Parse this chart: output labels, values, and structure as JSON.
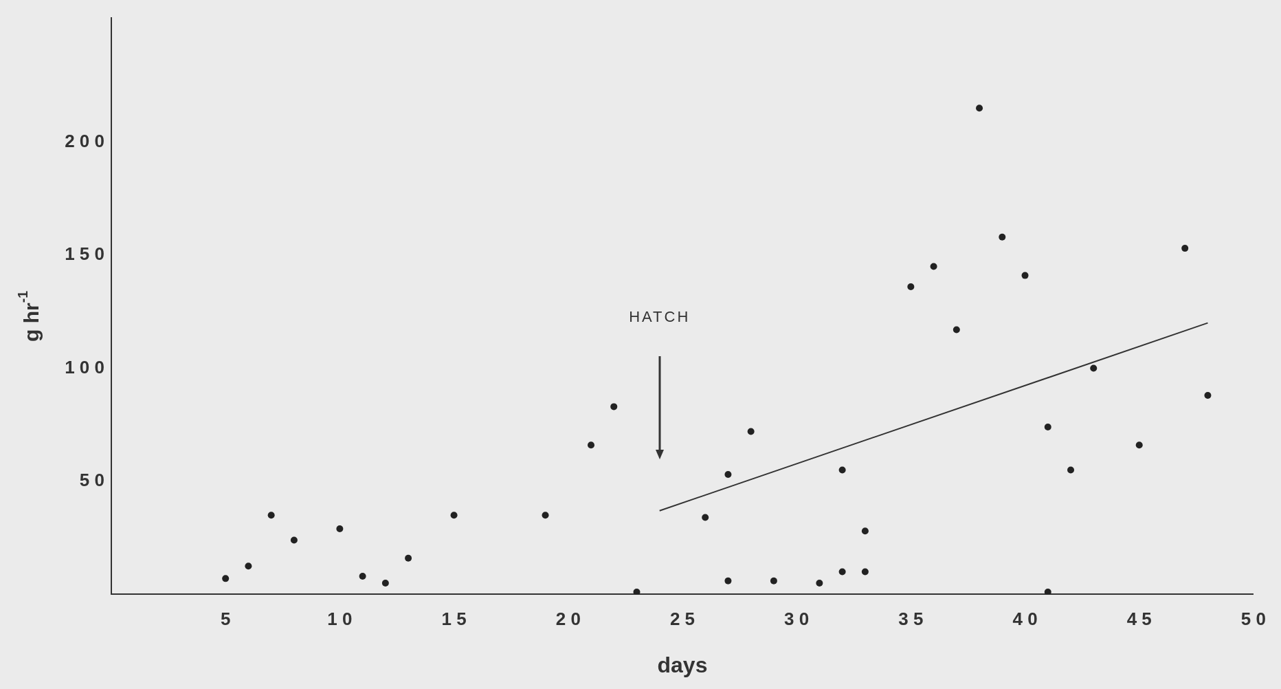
{
  "chart_data": {
    "type": "scatter",
    "xlabel": "days",
    "ylabel": "g hr$^{-1}$",
    "xlim": [
      0,
      50
    ],
    "xticks": [
      5,
      10,
      15,
      20,
      25,
      30,
      35,
      40,
      45,
      50
    ],
    "ylim": [
      0,
      255
    ],
    "yticks": [
      50,
      100,
      150,
      200
    ],
    "grid": false,
    "legend": false,
    "marker": "circle",
    "annotations": [
      "HATCH"
    ],
    "series": [
      {
        "color": "#222222",
        "x": [
          5,
          6,
          7,
          8,
          10,
          11,
          12,
          13,
          15,
          19,
          21,
          22,
          23,
          26,
          27,
          27,
          28,
          29,
          31,
          32,
          32,
          33,
          33,
          35,
          36,
          37,
          38,
          39,
          40,
          41,
          41,
          42,
          43,
          45,
          47,
          48
        ],
        "values": [
          7,
          12.5,
          35,
          24,
          29,
          8,
          5,
          16,
          35,
          35,
          66,
          83,
          1,
          34,
          6,
          53,
          72,
          6,
          5,
          10,
          55,
          10,
          28,
          136,
          145,
          117,
          215,
          158,
          141,
          74,
          1,
          55,
          100,
          66,
          153,
          88
        ]
      },
      {
        "type": "line",
        "color": "#333333",
        "marker": "none",
        "x": [
          24,
          48
        ],
        "values": [
          37,
          120
        ]
      }
    ]
  }
}
